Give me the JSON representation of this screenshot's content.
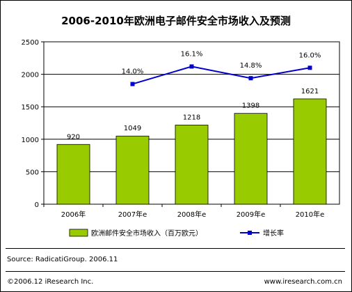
{
  "chart_data": {
    "type": "bar+line",
    "title": "2006-2010年欧洲电子邮件安全市场收入及预测",
    "categories": [
      "2006年",
      "2007年e",
      "2008年e",
      "2009年e",
      "2010年e"
    ],
    "ylim": [
      0,
      2500
    ],
    "yticks": [
      0,
      500,
      1000,
      1500,
      2000,
      2500
    ],
    "grid": true,
    "legend_position": "bottom",
    "series": [
      {
        "name": "欧洲邮件安全市场收入（百万欧元）",
        "type": "bar",
        "color": "#99cc00",
        "values": [
          920,
          1049,
          1218,
          1398,
          1621
        ],
        "labels": [
          "920",
          "1049",
          "1218",
          "1398",
          "1621"
        ]
      },
      {
        "name": "增长率",
        "type": "line",
        "color": "#0000cc",
        "values": [
          null,
          1850,
          2120,
          1940,
          2100
        ],
        "labels": [
          "",
          "14.0%",
          "16.1%",
          "14.8%",
          "16.0%"
        ]
      }
    ]
  },
  "source": "Source: RadicatiGroup. 2006.11",
  "copyright": "©2006.12 iResearch Inc.",
  "website": "www.iresearch.com.cn"
}
